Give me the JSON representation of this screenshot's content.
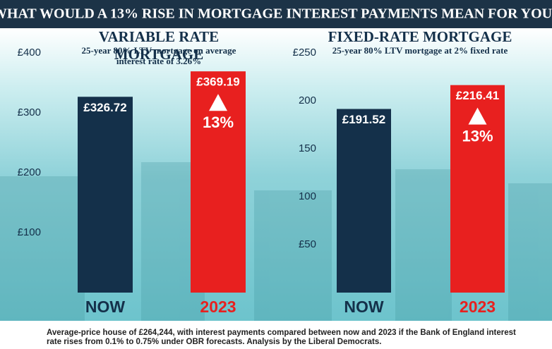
{
  "title": "WHAT WOULD A 13% RISE IN MORTGAGE INTEREST PAYMENTS MEAN FOR YOU?",
  "footnote": "Average-price house of £264,244, with interest payments compared between now and 2023 if the Bank of England interest rate rises from 0.1% to 0.75% under OBR forecasts. Analysis by the Liberal Democrats.",
  "chart_data": [
    {
      "type": "bar",
      "title": "VARIABLE RATE MORTGAGE",
      "subtitle": "25-year 80% LTV mortgage on average interest rate of 3.26%",
      "categories": [
        "NOW",
        "2023"
      ],
      "values": [
        326.72,
        369.19
      ],
      "value_labels": [
        "£326.72",
        "£369.19"
      ],
      "colors": [
        "#14304a",
        "#e8201f"
      ],
      "annotation": "13%",
      "ylim": [
        0,
        400
      ],
      "yticks": [
        {
          "value": 100,
          "label": "£100"
        },
        {
          "value": 200,
          "label": "£200"
        },
        {
          "value": 300,
          "label": "£300"
        },
        {
          "value": 400,
          "label": "£400"
        }
      ]
    },
    {
      "type": "bar",
      "title": "FIXED-RATE MORTGAGE",
      "subtitle": "25-year 80% LTV mortgage at 2% fixed rate",
      "categories": [
        "NOW",
        "2023"
      ],
      "values": [
        191.52,
        216.41
      ],
      "value_labels": [
        "£191.52",
        "£216.41"
      ],
      "colors": [
        "#14304a",
        "#e8201f"
      ],
      "annotation": "13%",
      "ylim": [
        0,
        250
      ],
      "yticks": [
        {
          "value": 50,
          "label": "£50"
        },
        100,
        150,
        200,
        {
          "value": 250,
          "label": "£250"
        }
      ]
    }
  ]
}
